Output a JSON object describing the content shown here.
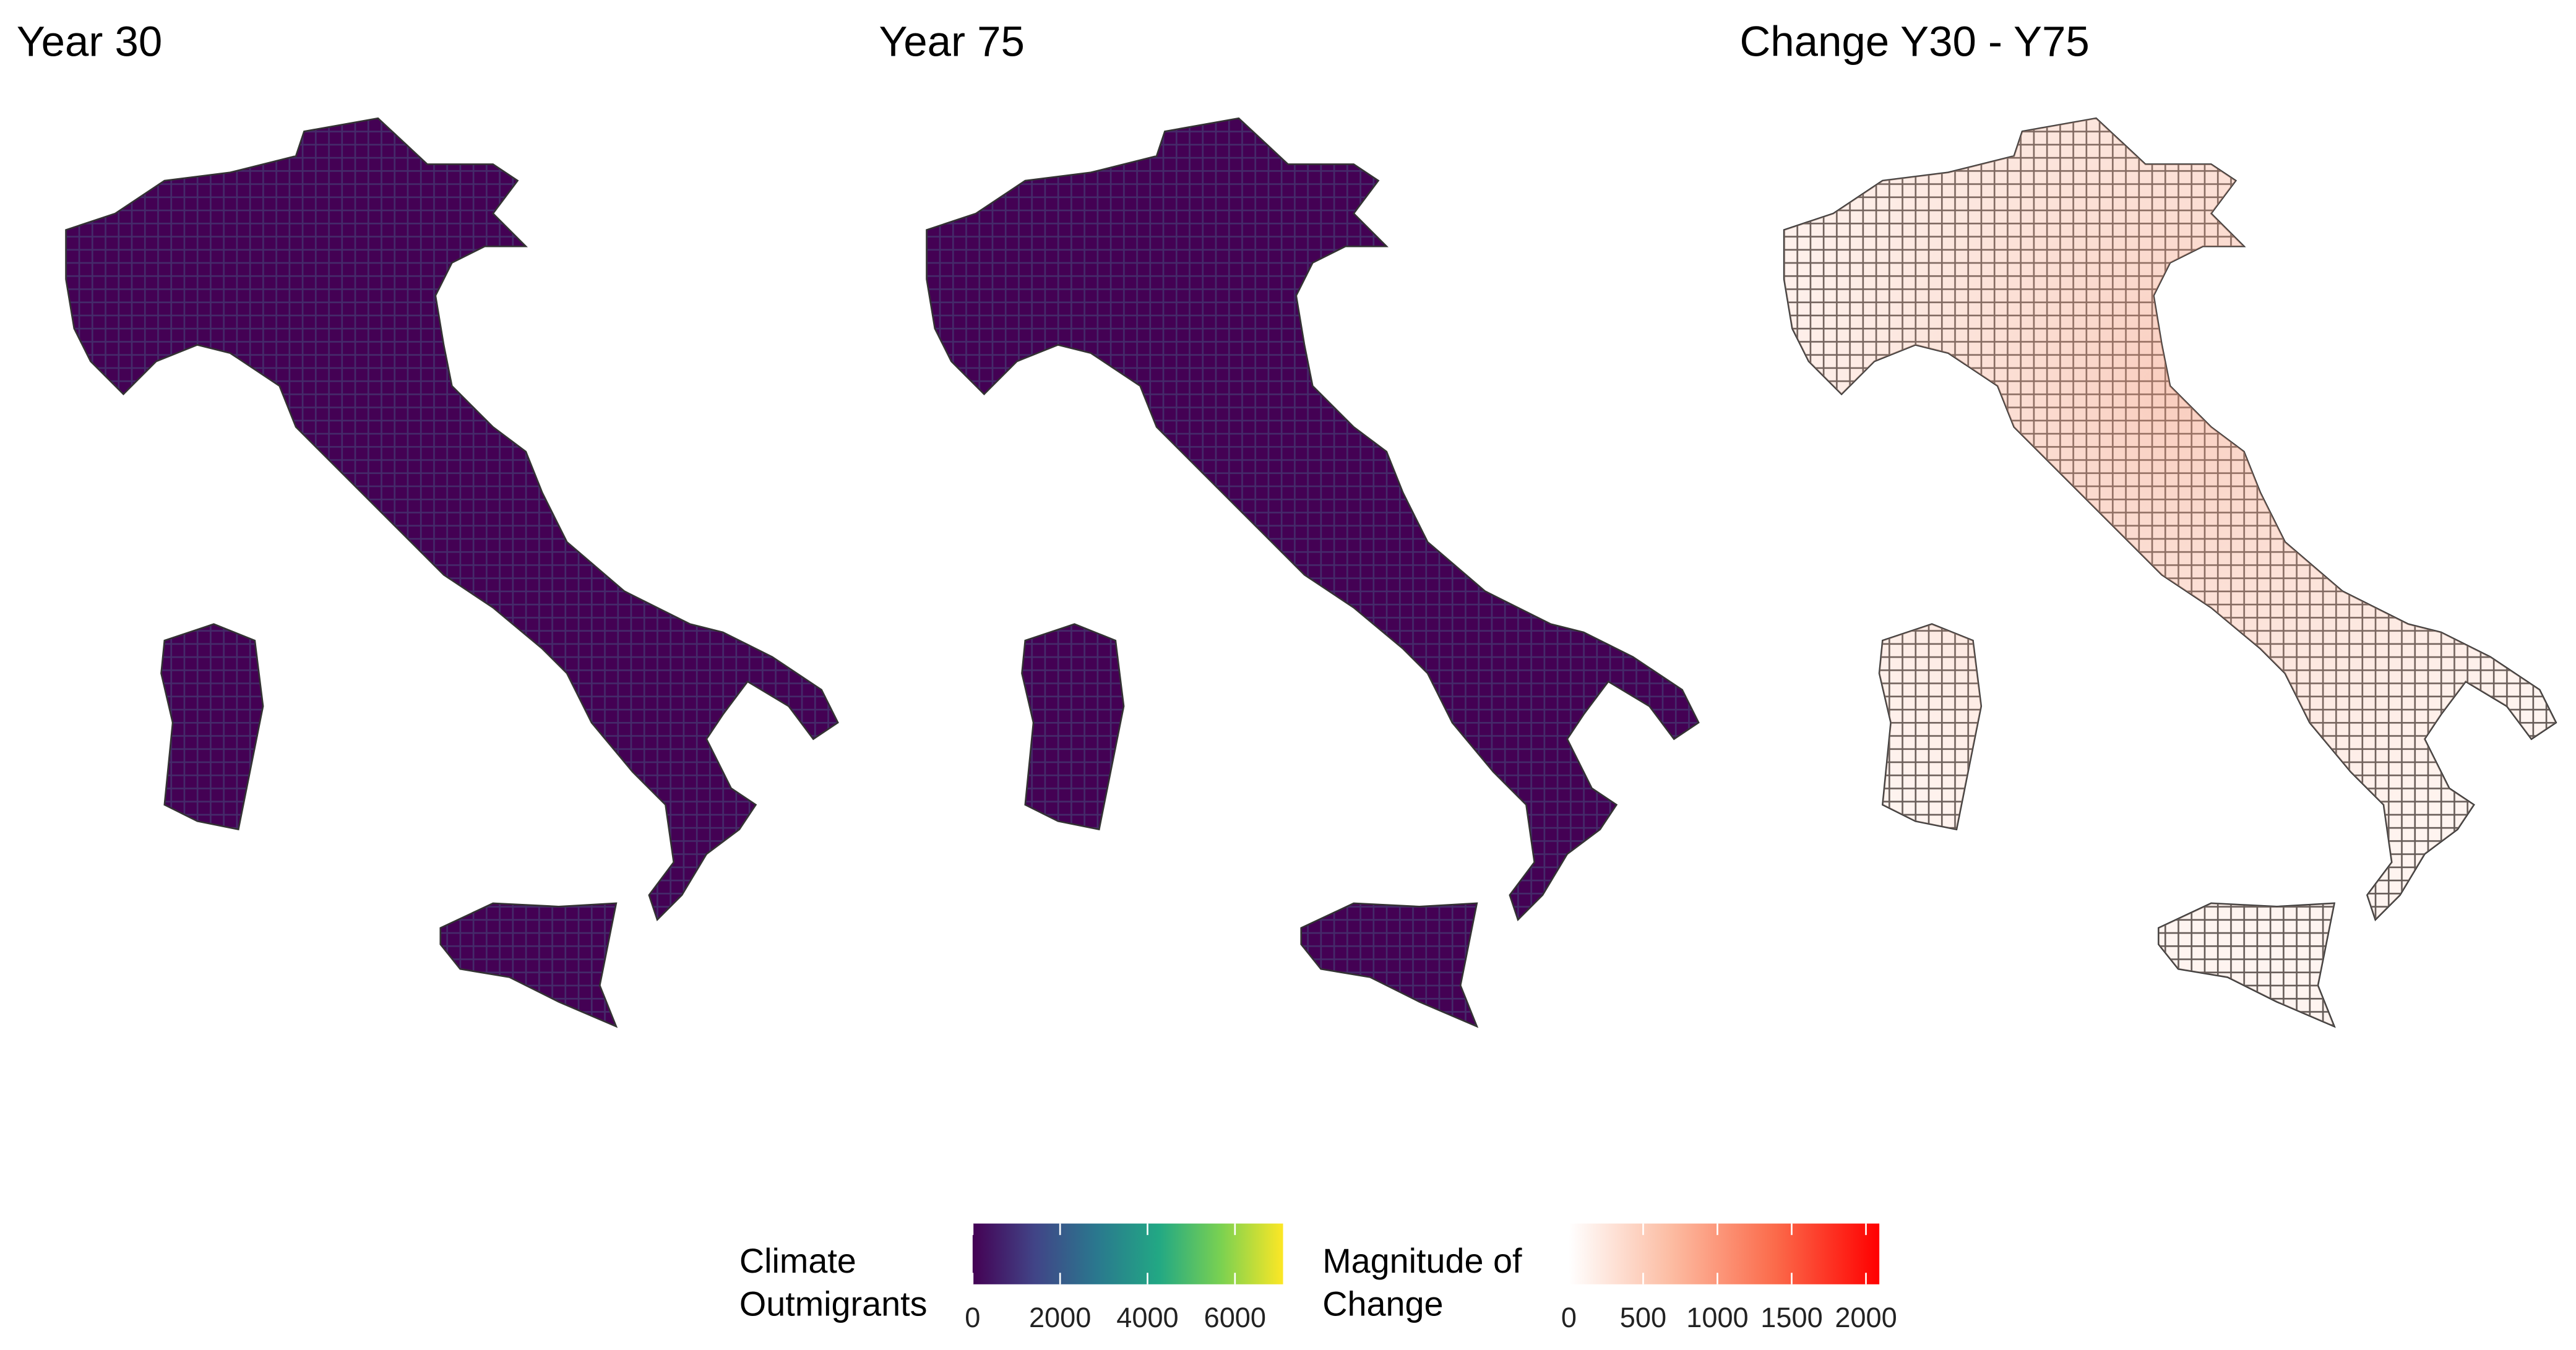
{
  "maps": [
    {
      "title": "Year 30"
    },
    {
      "title": "Year 75"
    },
    {
      "title": "Change Y30 - Y75"
    }
  ],
  "legends": [
    {
      "title": [
        "Climate",
        "Outmigrants"
      ],
      "lim": [
        0,
        7100
      ],
      "ticks": [
        0,
        2000,
        4000,
        6000
      ],
      "colors": [
        "#440154",
        "#414487",
        "#2a788e",
        "#22a884",
        "#7ad151",
        "#fde725"
      ]
    },
    {
      "title": [
        "Magnitude of",
        "Change"
      ],
      "lim": [
        0,
        2090
      ],
      "ticks": [
        0,
        500,
        1000,
        1500,
        2000
      ],
      "colors": [
        "#ffffff",
        "#fcbba1",
        "#fb6a4a",
        "#ff0000"
      ]
    }
  ]
}
